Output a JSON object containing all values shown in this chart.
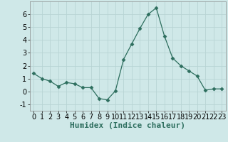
{
  "xlabel": "Humidex (Indice chaleur)",
  "x": [
    0,
    1,
    2,
    3,
    4,
    5,
    6,
    7,
    8,
    9,
    10,
    11,
    12,
    13,
    14,
    15,
    16,
    17,
    18,
    19,
    20,
    21,
    22,
    23
  ],
  "y": [
    1.4,
    1.0,
    0.8,
    0.4,
    0.7,
    0.6,
    0.3,
    0.3,
    -0.55,
    -0.65,
    0.05,
    2.5,
    3.7,
    4.9,
    6.0,
    6.5,
    4.3,
    2.6,
    2.0,
    1.6,
    1.2,
    0.1,
    0.2,
    0.2
  ],
  "ylim": [
    -1.5,
    7.0
  ],
  "xlim": [
    -0.5,
    23.5
  ],
  "yticks": [
    -1,
    0,
    1,
    2,
    3,
    4,
    5,
    6
  ],
  "xticks": [
    0,
    1,
    2,
    3,
    4,
    5,
    6,
    7,
    8,
    9,
    10,
    11,
    12,
    13,
    14,
    15,
    16,
    17,
    18,
    19,
    20,
    21,
    22,
    23
  ],
  "line_color": "#2d6e5e",
  "marker": "D",
  "marker_size": 2.5,
  "bg_color": "#cfe8e8",
  "grid_color": "#b8d4d4",
  "xlabel_fontsize": 8,
  "tick_fontsize": 7
}
